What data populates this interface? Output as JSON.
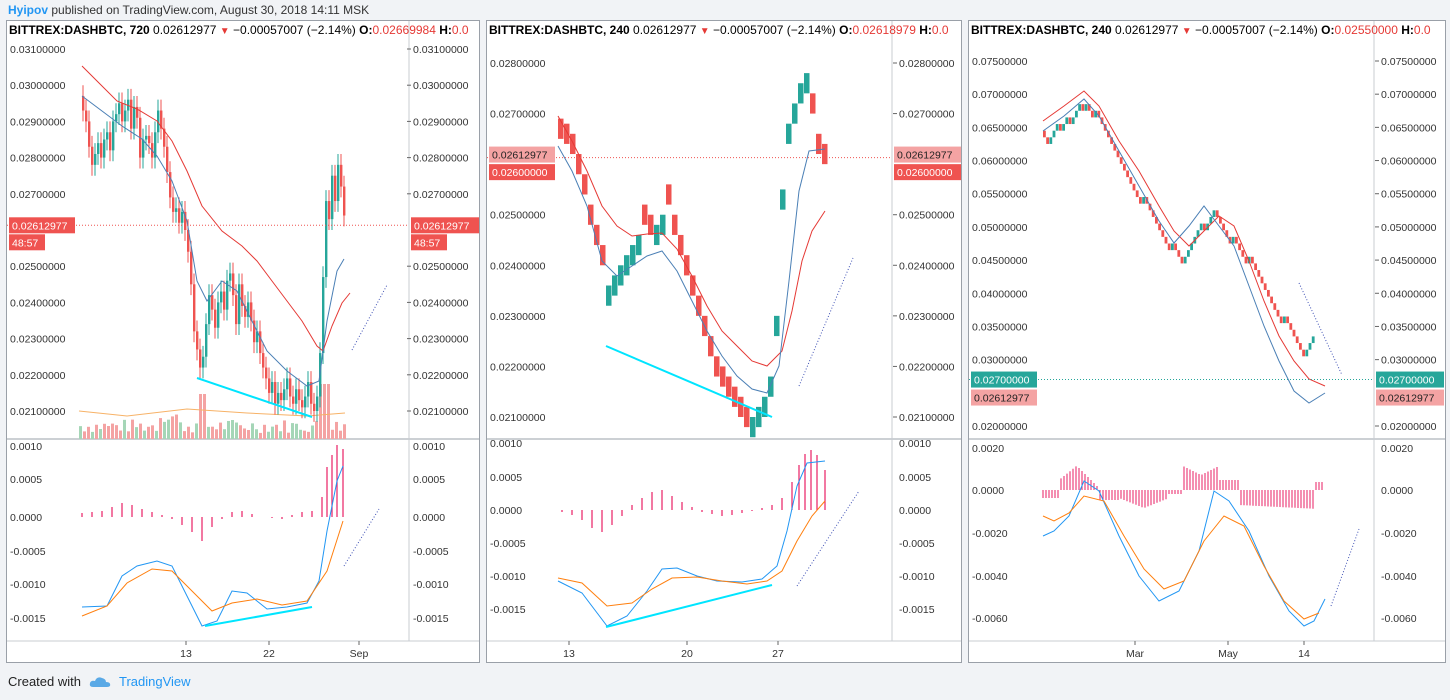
{
  "top": {
    "author": "Hyipov",
    "published_text": "published on TradingView.com, August 30, 2018 14:11 MSK"
  },
  "footer": {
    "created_with": "Created with",
    "brand": "TradingView"
  },
  "colors": {
    "up": "#26a69a",
    "down": "#ef5350",
    "ma_fast": "#4a7fb5",
    "ma_slow": "#e53935",
    "macd_line": "#2196f3",
    "signal_line": "#ff7f0e",
    "histogram": "#e91e63",
    "divergence": "#00e5ff",
    "arrow": "#3f51b5"
  },
  "panels": [
    {
      "id": "p1",
      "symbol": "BITTREX:DASHBTC, 720",
      "last": "0.02612977",
      "change": "−0.00057007 (−2.14%)",
      "o_label": "O:",
      "o_value": "0.02669984",
      "h_label": "H:",
      "h_value": "0.0",
      "price_ticks": [
        "0.03100000",
        "0.03000000",
        "0.02900000",
        "0.02800000",
        "0.02700000",
        "0.02500000",
        "0.02400000",
        "0.02300000",
        "0.02200000",
        "0.02100000"
      ],
      "price_badge": "0.02612977",
      "timer_badge": "48:57",
      "macd_ticks": [
        "0.0010",
        "0.0005",
        "0.0000",
        "-0.0005",
        "-0.0010",
        "-0.0015"
      ],
      "time_ticks": [
        "13",
        "22",
        "Sep"
      ]
    },
    {
      "id": "p2",
      "symbol": "BITTREX:DASHBTC, 240",
      "last": "0.02612977",
      "change": "−0.00057007 (−2.14%)",
      "o_label": "O:",
      "o_value": "0.02618979",
      "h_label": "H:",
      "h_value": "0.0",
      "price_ticks": [
        "0.02800000",
        "0.02700000",
        "0.02500000",
        "0.02400000",
        "0.02300000",
        "0.02200000",
        "0.02100000"
      ],
      "price_badge": "0.02612977",
      "level_badge": "0.02600000",
      "macd_ticks": [
        "0.0010",
        "0.0005",
        "0.0000",
        "-0.0005",
        "-0.0010",
        "-0.0015"
      ],
      "time_ticks": [
        "13",
        "20",
        "27"
      ]
    },
    {
      "id": "p3",
      "symbol": "BITTREX:DASHBTC, 240",
      "last": "0.02612977",
      "change": "−0.00057007 (−2.14%)",
      "o_label": "O:",
      "o_value": "0.02550000",
      "h_label": "H:",
      "h_value": "0.0",
      "price_ticks": [
        "0.07500000",
        "0.07000000",
        "0.06500000",
        "0.06000000",
        "0.05500000",
        "0.05000000",
        "0.04500000",
        "0.04000000",
        "0.03500000",
        "0.03000000",
        "0.02000000"
      ],
      "level_badge": "0.02700000",
      "price_badge": "0.02612977",
      "macd_ticks": [
        "0.0020",
        "0.0000",
        "-0.0020",
        "-0.0040",
        "-0.0060"
      ],
      "time_ticks": [
        "Mar",
        "May",
        "14"
      ]
    }
  ]
}
